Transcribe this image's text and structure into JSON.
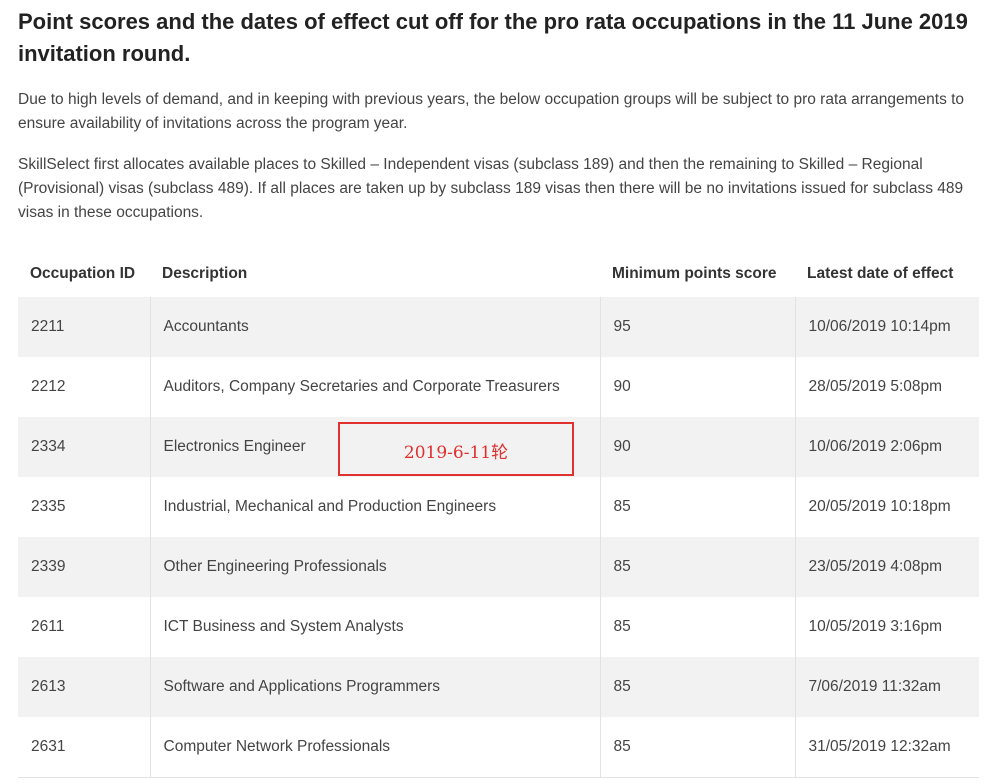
{
  "title": "Point scores and the dates of effect cut off for the pro rata occupations in the 11 June 2019 invitation round.",
  "paragraphs": [
    "Due to high levels of demand, and in keeping with previous years, the below occupation groups will be subject to pro rata arrangements to ensure availability of invitations across the program year.",
    "SkillSelect first allocates available places to Skilled – Independent visas (subclass 189) and then the remaining to Skilled – Regional (Provisional) visas (subclass 489). If all places are taken up by subclass 189 visas then there will be no invitations issued for subclass 489 visas in these occupations."
  ],
  "table": {
    "headers": [
      "Occupation ID",
      "Description",
      "Minimum points score",
      "Latest date of effect"
    ],
    "rows": [
      [
        "2211",
        "Accountants",
        "95",
        "10/06/2019 10:14pm"
      ],
      [
        "2212",
        "Auditors, Company Secretaries and Corporate Treasurers",
        "90",
        "28/05/2019 5:08pm"
      ],
      [
        "2334",
        "Electronics Engineer",
        "90",
        "10/06/2019 2:06pm"
      ],
      [
        "2335",
        "Industrial, Mechanical and Production Engineers",
        "85",
        "20/05/2019 10:18pm"
      ],
      [
        "2339",
        "Other Engineering Professionals",
        "85",
        "23/05/2019 4:08pm"
      ],
      [
        "2611",
        "ICT Business and System Analysts",
        "85",
        "10/05/2019 3:16pm"
      ],
      [
        "2613",
        "Software and Applications Programmers",
        "85",
        "7/06/2019 11:32am"
      ],
      [
        "2631",
        "Computer Network Professionals",
        "85",
        "31/05/2019 12:32am"
      ]
    ]
  },
  "annotation": "2019-6-11轮"
}
